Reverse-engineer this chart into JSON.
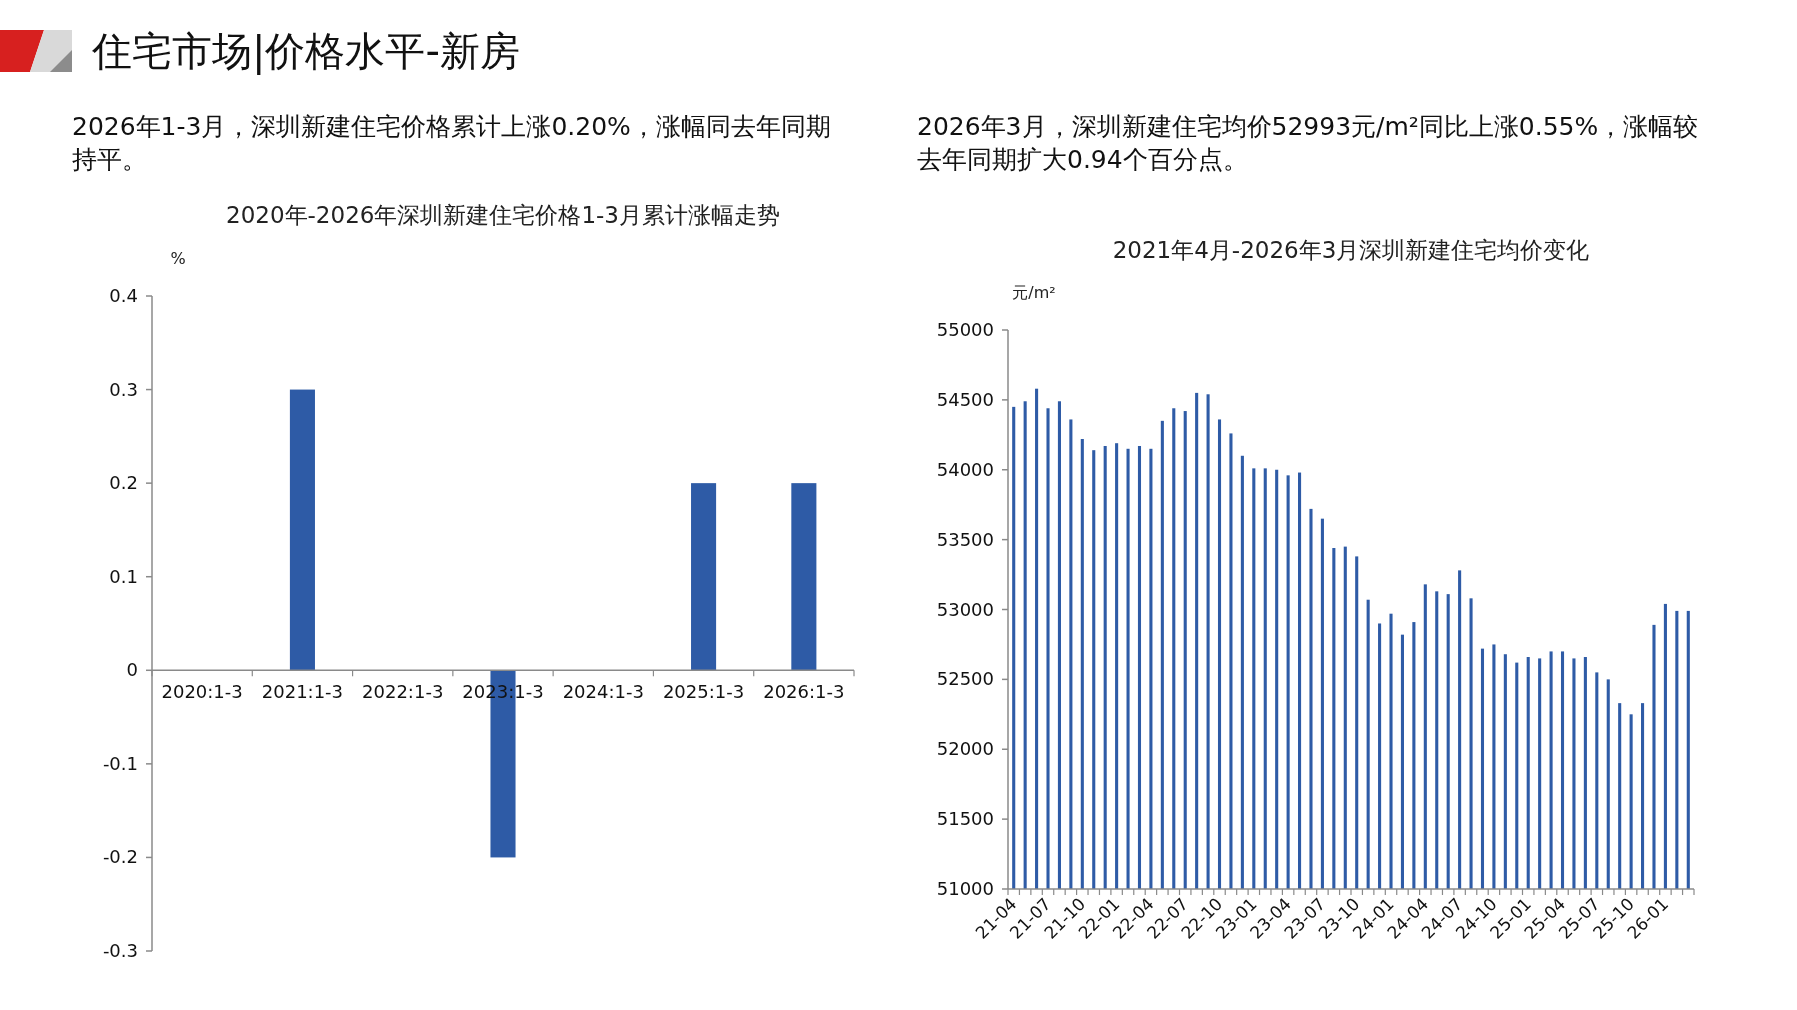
{
  "chart_data": [
    {
      "type": "other",
      "title": "住宅市场|价格水平-新房"
    },
    {
      "type": "bar",
      "title": "2020年-2026年深圳新建住宅价格1-3月累计涨幅走势",
      "annotations": [
        "2026年1-3月，深圳新建住宅价格累计上涨0.20%，涨幅同去年同期持平。"
      ],
      "ylabel": "%",
      "categories": [
        "2020:1-3",
        "2021:1-3",
        "2022:1-3",
        "2023:1-3",
        "2024:1-3",
        "2025:1-3",
        "2026:1-3"
      ],
      "values": [
        0,
        0.3,
        0,
        -0.2,
        0,
        0.2,
        0.2
      ],
      "color": "#2e5ba6",
      "ylim": [
        -0.3,
        0.4
      ],
      "yticks": [
        -0.3,
        -0.2,
        -0.1,
        0,
        0.1,
        0.2,
        0.3,
        0.4
      ]
    },
    {
      "type": "bar",
      "title": "2021年4月-2026年3月深圳新建住宅均价变化",
      "annotations": [
        "2026年3月，深圳新建住宅均价52993元/m²同比上涨0.55%，涨幅较去年同期扩大0.94个百分点。"
      ],
      "ylabel": "元/m²",
      "categories": [
        "21-04",
        null,
        null,
        "21-07",
        null,
        null,
        "21-10",
        null,
        null,
        "22-01",
        null,
        null,
        "22-04",
        null,
        null,
        "22-07",
        null,
        null,
        "22-10",
        null,
        null,
        "23-01",
        null,
        null,
        "23-04",
        null,
        null,
        "23-07",
        null,
        null,
        "23-10",
        null,
        null,
        "24-01",
        null,
        null,
        "24-04",
        null,
        null,
        "24-07",
        null,
        null,
        "24-10",
        null,
        null,
        "25-01",
        null,
        null,
        "25-04",
        null,
        null,
        "25-07",
        null,
        null,
        "25-10",
        null,
        null,
        "26-01",
        null,
        null
      ],
      "values": [
        54450,
        54490,
        54580,
        54440,
        54490,
        54360,
        54220,
        54140,
        54170,
        54190,
        54150,
        54170,
        54150,
        54350,
        54440,
        54420,
        54550,
        54540,
        54360,
        54260,
        54100,
        54010,
        54010,
        54000,
        53960,
        53980,
        53720,
        53650,
        53440,
        53450,
        53380,
        53070,
        52900,
        52970,
        52820,
        52910,
        53180,
        53130,
        53110,
        53280,
        53080,
        52720,
        52750,
        52680,
        52620,
        52660,
        52650,
        52700,
        52700,
        52650,
        52660,
        52550,
        52500,
        52330,
        52250,
        52330,
        52890,
        53040,
        52990,
        52990
      ],
      "color": "#2e5ba6",
      "ylim": [
        51000,
        55000
      ],
      "yticks": [
        51000,
        51500,
        52000,
        52500,
        53000,
        53500,
        54000,
        54500,
        55000
      ]
    }
  ]
}
